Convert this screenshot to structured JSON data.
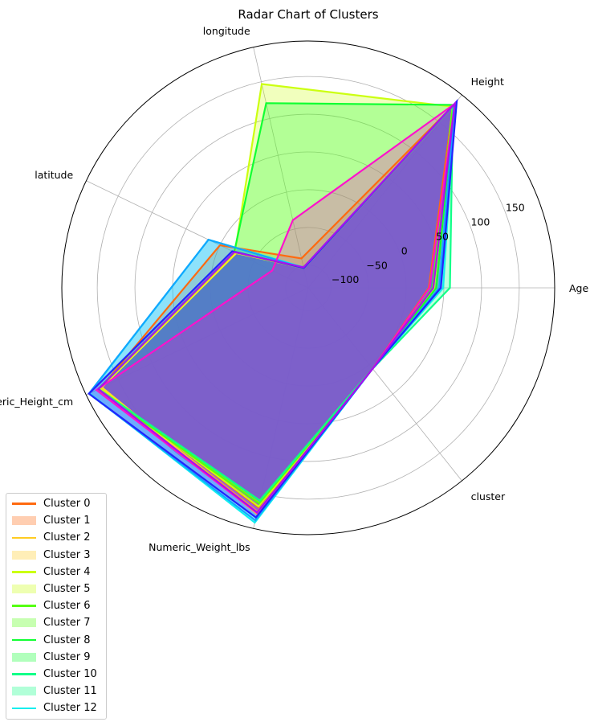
{
  "chart_data": {
    "type": "radar",
    "title": "Radar Chart of Clusters",
    "axes": [
      "Age",
      "Height",
      "longitude",
      "latitude",
      "Numeric_Height_cm",
      "Numeric_Weight_lbs",
      "cluster"
    ],
    "radial_ticks": [
      "−100",
      "−50",
      "0",
      "50",
      "100",
      "150"
    ],
    "radial_tick_values": [
      -100,
      -50,
      0,
      50,
      100,
      150
    ],
    "rlim": [
      -130,
      197
    ],
    "grid": true,
    "legend_placement": "lower-left",
    "legend": [
      "Cluster 0",
      "Cluster 1",
      "Cluster 2",
      "Cluster 3",
      "Cluster 4",
      "Cluster 5",
      "Cluster 6",
      "Cluster 7",
      "Cluster 8",
      "Cluster 9",
      "Cluster 10",
      "Cluster 11",
      "Cluster 12"
    ],
    "legend_kinds": [
      "line",
      "patch",
      "line",
      "patch",
      "line",
      "patch",
      "line",
      "patch",
      "line",
      "patch",
      "line",
      "patch",
      "line"
    ],
    "legend_colors": [
      "#ff6a10",
      "#ff6a10",
      "#ffcc22",
      "#ffcc22",
      "#ccff11",
      "#ccff11",
      "#55ff11",
      "#55ff11",
      "#11ff33",
      "#11ff33",
      "#11ff88",
      "#11ff88",
      "#11eeee"
    ],
    "series": [
      {
        "color": "#ff6a10",
        "values": [
          30,
          178,
          -90,
          0,
          176,
          168,
          7
        ]
      },
      {
        "color": "#ffb020",
        "values": [
          35,
          181,
          -102,
          -24,
          176,
          174,
          7
        ]
      },
      {
        "color": "#ffe020",
        "values": [
          40,
          180,
          -103,
          -24,
          174,
          177,
          7
        ]
      },
      {
        "color": "#ccff11",
        "values": [
          37,
          177,
          147,
          -22,
          177,
          167,
          7
        ]
      },
      {
        "color": "#88ff11",
        "values": [
          36,
          178,
          -103,
          -21,
          180,
          162,
          7
        ]
      },
      {
        "color": "#55ff11",
        "values": [
          35,
          178,
          -102,
          -21,
          180,
          163,
          7
        ]
      },
      {
        "color": "#11ff33",
        "values": [
          40,
          180,
          121,
          -21,
          179,
          159,
          7
        ]
      },
      {
        "color": "#11ff88",
        "values": [
          58,
          178,
          -102,
          -21,
          179,
          159,
          7
        ]
      },
      {
        "color": "#11eeee",
        "values": [
          49,
          182,
          -102,
          17,
          192,
          189,
          7
        ]
      },
      {
        "color": "#11a6ff",
        "values": [
          44,
          182,
          -103,
          17,
          193,
          186,
          7
        ]
      },
      {
        "color": "#2222ff",
        "values": [
          46,
          186,
          -103,
          -18,
          193,
          182,
          7
        ]
      },
      {
        "color": "#ff11cc",
        "values": [
          31,
          182,
          -38,
          -77,
          182,
          176,
          7
        ]
      },
      {
        "color": "#aa11ee",
        "values": [
          36,
          182,
          -102,
          -21,
          179,
          175,
          7
        ]
      }
    ]
  }
}
